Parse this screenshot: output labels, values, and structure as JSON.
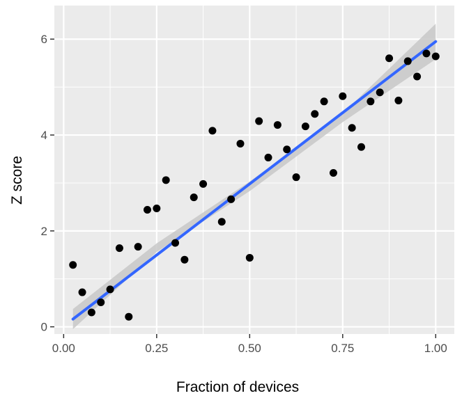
{
  "chart_data": {
    "type": "scatter",
    "xlabel": "Fraction of devices",
    "ylabel": "Z score",
    "xlim": [
      -0.025,
      1.05
    ],
    "ylim": [
      -0.15,
      6.7
    ],
    "x_ticks": [
      0.0,
      0.25,
      0.5,
      0.75,
      1.0
    ],
    "x_tick_labels": [
      "0.00",
      "0.25",
      "0.50",
      "0.75",
      "1.00"
    ],
    "y_ticks": [
      0,
      2,
      4,
      6
    ],
    "y_tick_labels": [
      "0",
      "2",
      "4",
      "6"
    ],
    "grid": true,
    "legend": "none",
    "colors": {
      "panel": "#ebebeb",
      "grid": "#ffffff",
      "points": "#000000",
      "fit_line": "#3366ff",
      "confidence_band": "#c8c8c8"
    },
    "points": [
      {
        "x": 0.025,
        "y": 1.29
      },
      {
        "x": 0.05,
        "y": 0.72
      },
      {
        "x": 0.075,
        "y": 0.3
      },
      {
        "x": 0.1,
        "y": 0.51
      },
      {
        "x": 0.125,
        "y": 0.78
      },
      {
        "x": 0.15,
        "y": 1.64
      },
      {
        "x": 0.175,
        "y": 0.21
      },
      {
        "x": 0.2,
        "y": 1.67
      },
      {
        "x": 0.225,
        "y": 2.44
      },
      {
        "x": 0.25,
        "y": 2.47
      },
      {
        "x": 0.275,
        "y": 3.06
      },
      {
        "x": 0.3,
        "y": 1.75
      },
      {
        "x": 0.325,
        "y": 1.4
      },
      {
        "x": 0.35,
        "y": 2.7
      },
      {
        "x": 0.375,
        "y": 2.98
      },
      {
        "x": 0.4,
        "y": 4.09
      },
      {
        "x": 0.425,
        "y": 2.19
      },
      {
        "x": 0.45,
        "y": 2.66
      },
      {
        "x": 0.475,
        "y": 3.82
      },
      {
        "x": 0.5,
        "y": 1.44
      },
      {
        "x": 0.525,
        "y": 4.29
      },
      {
        "x": 0.55,
        "y": 3.53
      },
      {
        "x": 0.575,
        "y": 4.21
      },
      {
        "x": 0.6,
        "y": 3.7
      },
      {
        "x": 0.625,
        "y": 3.12
      },
      {
        "x": 0.65,
        "y": 4.18
      },
      {
        "x": 0.675,
        "y": 4.44
      },
      {
        "x": 0.7,
        "y": 4.7
      },
      {
        "x": 0.725,
        "y": 3.21
      },
      {
        "x": 0.75,
        "y": 4.81
      },
      {
        "x": 0.775,
        "y": 4.15
      },
      {
        "x": 0.8,
        "y": 3.75
      },
      {
        "x": 0.825,
        "y": 4.7
      },
      {
        "x": 0.85,
        "y": 4.89
      },
      {
        "x": 0.875,
        "y": 5.6
      },
      {
        "x": 0.9,
        "y": 4.72
      },
      {
        "x": 0.925,
        "y": 5.54
      },
      {
        "x": 0.95,
        "y": 5.22
      },
      {
        "x": 0.975,
        "y": 5.7
      },
      {
        "x": 1.0,
        "y": 5.64
      }
    ],
    "fit_line": {
      "x": [
        0.025,
        1.0
      ],
      "y": [
        0.16,
        5.95
      ]
    },
    "confidence_band": [
      {
        "x": 0.025,
        "lo": -0.05,
        "hi": 0.37
      },
      {
        "x": 0.25,
        "lo": 1.56,
        "hi": 1.74
      },
      {
        "x": 0.5,
        "lo": 2.83,
        "hi": 3.03
      },
      {
        "x": 0.75,
        "lo": 4.27,
        "hi": 4.45
      },
      {
        "x": 1.0,
        "lo": 5.58,
        "hi": 6.32
      }
    ]
  }
}
